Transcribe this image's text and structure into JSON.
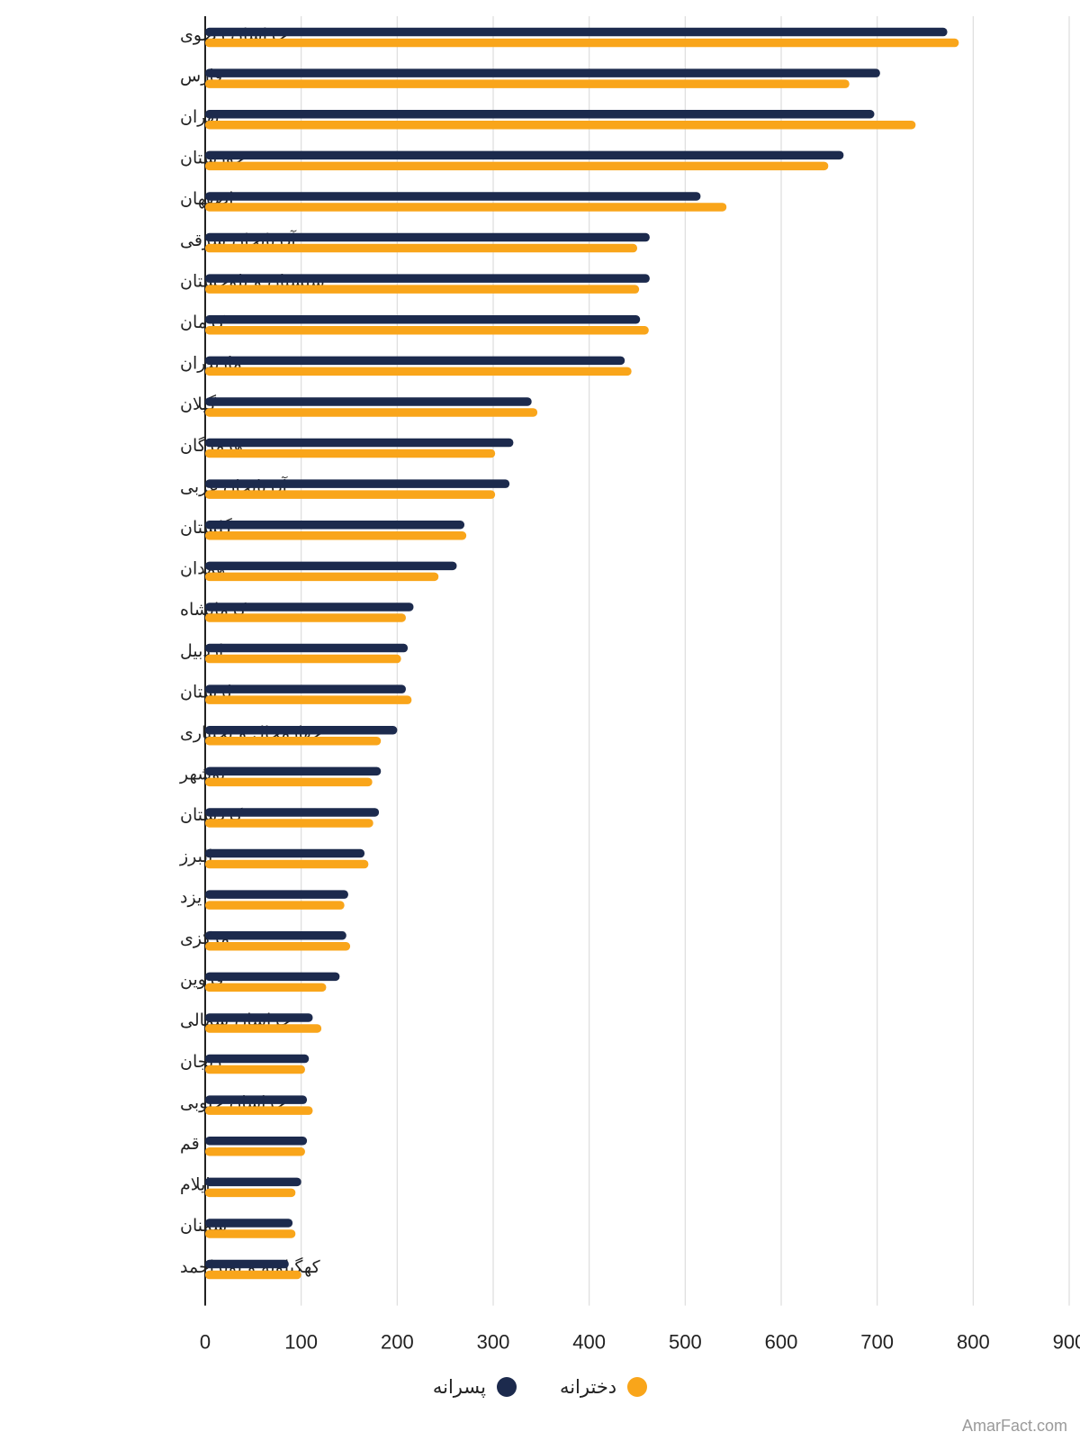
{
  "chart_data": {
    "type": "bar",
    "orientation": "horizontal",
    "categories": [
      "خراسان رضوی",
      "فارس",
      "تهران",
      "خوزستان",
      "اصفهان",
      "آذربایجان شرقی",
      "سیستان و بلوچستان",
      "کرمان",
      "مازندران",
      "گیلان",
      "هرمزگان",
      "آذربایجان غربی",
      "گلستان",
      "همدان",
      "کرمانشاه",
      "اردبیل",
      "لرستان",
      "چهارمحال و بختیاری",
      "بوشهر",
      "کردستان",
      "البرز",
      "یزد",
      "مرکزی",
      "قزوین",
      "خراسان شمالی",
      "زنجان",
      "خراسان جنوبی",
      "قم",
      "ایلام",
      "سمنان",
      "کهگیلویه و بویراحمد"
    ],
    "series": [
      {
        "name": "پسرانه",
        "color": "#1c2a4d",
        "values": [
          773,
          703,
          697,
          665,
          516,
          463,
          463,
          453,
          437,
          340,
          321,
          317,
          270,
          262,
          217,
          211,
          209,
          200,
          183,
          181,
          166,
          149,
          147,
          140,
          112,
          108,
          106,
          106,
          100,
          91,
          87
        ]
      },
      {
        "name": "دخترانه",
        "color": "#f9a51a",
        "values": [
          785,
          671,
          740,
          649,
          543,
          450,
          452,
          462,
          444,
          346,
          302,
          302,
          272,
          243,
          209,
          204,
          215,
          183,
          174,
          175,
          170,
          145,
          151,
          126,
          121,
          104,
          112,
          104,
          94,
          94,
          100
        ]
      }
    ],
    "xlim": [
      0,
      900
    ],
    "x_ticks": [
      "0",
      "100",
      "200",
      "300",
      "400",
      "500",
      "600",
      "700",
      "800",
      "900"
    ],
    "grid": true,
    "legend_position": "bottom-center",
    "watermark": "AmarFact.com"
  }
}
